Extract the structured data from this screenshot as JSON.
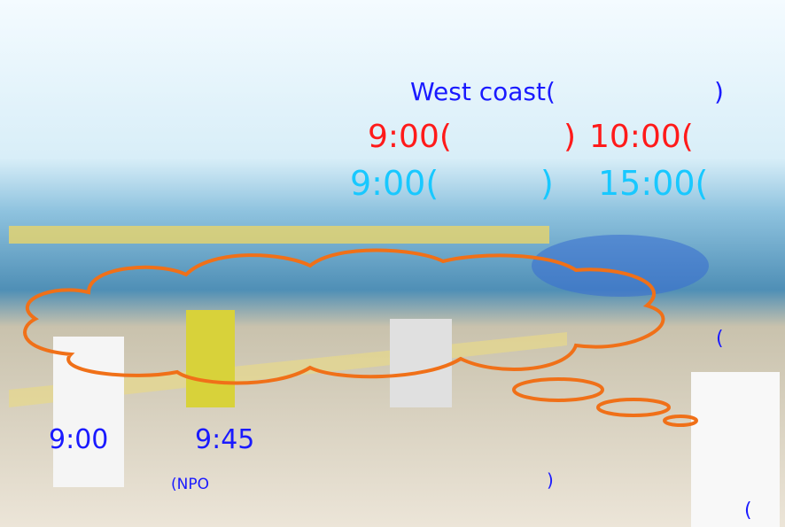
{
  "overlay_texts": {
    "heading": {
      "prefix": "West coast(",
      "suffix": ")"
    },
    "red_line": {
      "start": "9:00(",
      "middle": ")",
      "end": "10:00("
    },
    "cyan_line": {
      "start": "9:00(",
      "middle": ")",
      "end": "15:00("
    },
    "side_paren": "(",
    "time_left": "9:00",
    "time_right": "9:45",
    "npo_open": "(NPO",
    "npo_close": ")",
    "corner_paren": "("
  }
}
